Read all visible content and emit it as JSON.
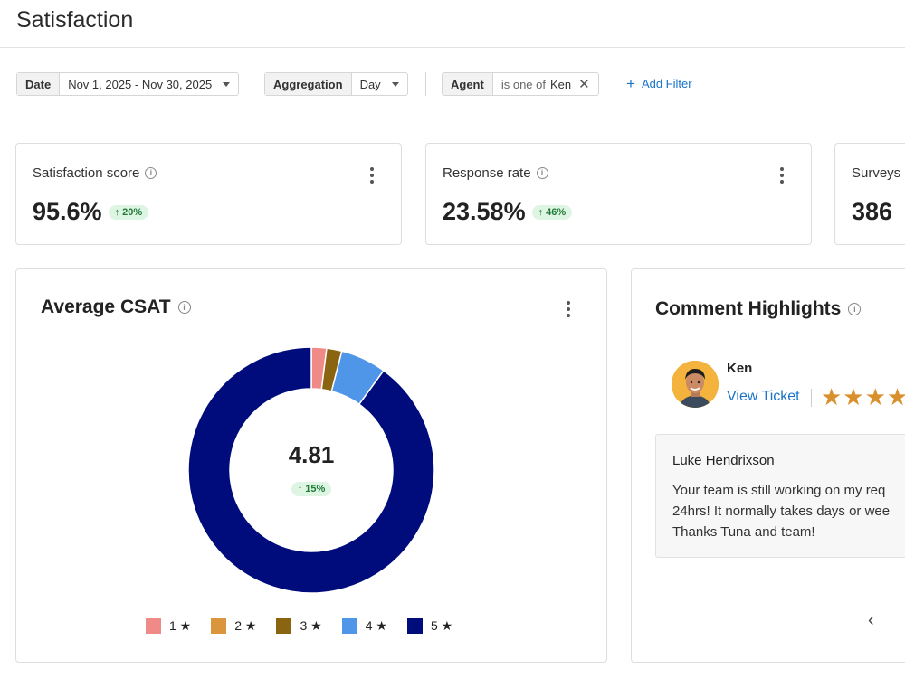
{
  "page": {
    "title": "Satisfaction"
  },
  "filters": {
    "date": {
      "key": "Date",
      "value": "Nov 1, 2025 - Nov 30, 2025"
    },
    "aggregation": {
      "key": "Aggregation",
      "value": "Day"
    },
    "agent": {
      "key": "Agent",
      "operator": "is one of",
      "value": "Ken"
    },
    "add_filter_label": "Add Filter"
  },
  "metrics": [
    {
      "label": "Satisfaction score",
      "value": "95.6%",
      "change": "↑ 20%"
    },
    {
      "label": "Response rate",
      "value": "23.58%",
      "change": "↑ 46%"
    },
    {
      "label": "Surveys",
      "value": "386"
    }
  ],
  "csat": {
    "title": "Average CSAT",
    "average": "4.81",
    "change": "↑ 15%"
  },
  "chart_data": {
    "type": "pie",
    "title": "Average CSAT",
    "categories": [
      "1 ★",
      "2 ★",
      "3 ★",
      "4 ★",
      "5 ★"
    ],
    "values": [
      2,
      0,
      2,
      6,
      90
    ],
    "colors": [
      "#ef8a87",
      "#d9963c",
      "#8a6410",
      "#4f95e8",
      "#000c7c"
    ],
    "legend": "bottom"
  },
  "comments": {
    "title": "Comment Highlights",
    "agent_name": "Ken",
    "view_ticket_label": "View Ticket",
    "stars": "★★★★",
    "author": "Luke Hendrixson",
    "text": "Your team is still working on my req\n24hrs! It normally takes days or wee\nThanks Tuna and team!",
    "prev_icon": "chevron-left-icon"
  },
  "colors": {
    "accent": "#1a73c8",
    "badge_bg": "#dff5e4",
    "badge_text": "#1e7a35",
    "star": "#d98f2b"
  }
}
